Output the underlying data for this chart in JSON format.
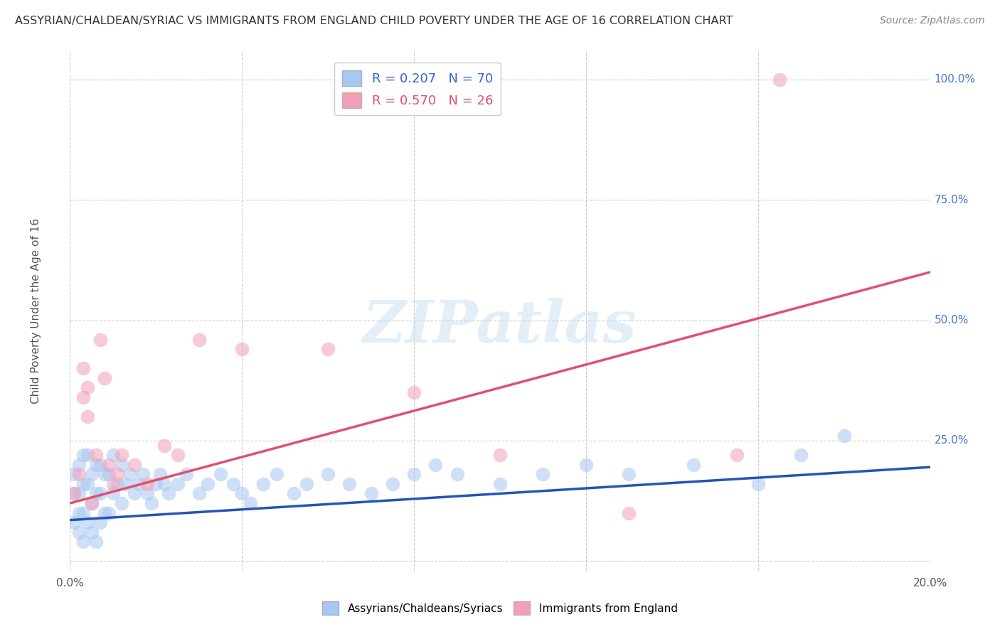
{
  "title": "ASSYRIAN/CHALDEAN/SYRIAC VS IMMIGRANTS FROM ENGLAND CHILD POVERTY UNDER THE AGE OF 16 CORRELATION CHART",
  "source": "Source: ZipAtlas.com",
  "ylabel": "Child Poverty Under the Age of 16",
  "xlim": [
    0.0,
    0.2
  ],
  "ylim": [
    -0.02,
    1.06
  ],
  "xticks": [
    0.0,
    0.04,
    0.08,
    0.12,
    0.16,
    0.2
  ],
  "xticklabels": [
    "0.0%",
    "",
    "",
    "",
    "",
    "20.0%"
  ],
  "yticks": [
    0.0,
    0.25,
    0.5,
    0.75,
    1.0
  ],
  "yticklabels": [
    "",
    "25.0%",
    "50.0%",
    "75.0%",
    "100.0%"
  ],
  "background_color": "#ffffff",
  "grid_color": "#cccccc",
  "watermark": "ZIPatlas",
  "blue_series": {
    "label": "Assyrians/Chaldeans/Syriacs",
    "R": 0.207,
    "N": 70,
    "color": "#a8c8f0",
    "line_color": "#2255bb",
    "scatter_x": [
      0.001,
      0.001,
      0.001,
      0.002,
      0.002,
      0.002,
      0.002,
      0.003,
      0.003,
      0.003,
      0.003,
      0.004,
      0.004,
      0.004,
      0.005,
      0.005,
      0.005,
      0.006,
      0.006,
      0.006,
      0.007,
      0.007,
      0.007,
      0.008,
      0.008,
      0.009,
      0.009,
      0.01,
      0.01,
      0.011,
      0.012,
      0.012,
      0.013,
      0.014,
      0.015,
      0.016,
      0.017,
      0.018,
      0.019,
      0.02,
      0.021,
      0.022,
      0.023,
      0.025,
      0.027,
      0.03,
      0.032,
      0.035,
      0.038,
      0.04,
      0.042,
      0.045,
      0.048,
      0.052,
      0.055,
      0.06,
      0.065,
      0.07,
      0.075,
      0.08,
      0.085,
      0.09,
      0.1,
      0.11,
      0.12,
      0.13,
      0.145,
      0.16,
      0.17,
      0.18
    ],
    "scatter_y": [
      0.08,
      0.14,
      0.18,
      0.06,
      0.1,
      0.14,
      0.2,
      0.04,
      0.1,
      0.16,
      0.22,
      0.08,
      0.16,
      0.22,
      0.06,
      0.12,
      0.18,
      0.04,
      0.14,
      0.2,
      0.08,
      0.14,
      0.2,
      0.1,
      0.18,
      0.1,
      0.18,
      0.14,
      0.22,
      0.16,
      0.12,
      0.2,
      0.16,
      0.18,
      0.14,
      0.16,
      0.18,
      0.14,
      0.12,
      0.16,
      0.18,
      0.16,
      0.14,
      0.16,
      0.18,
      0.14,
      0.16,
      0.18,
      0.16,
      0.14,
      0.12,
      0.16,
      0.18,
      0.14,
      0.16,
      0.18,
      0.16,
      0.14,
      0.16,
      0.18,
      0.2,
      0.18,
      0.16,
      0.18,
      0.2,
      0.18,
      0.2,
      0.16,
      0.22,
      0.26
    ],
    "trend_x": [
      0.0,
      0.2
    ],
    "trend_y": [
      0.085,
      0.195
    ]
  },
  "pink_series": {
    "label": "Immigrants from England",
    "R": 0.57,
    "N": 26,
    "color": "#f0a0b8",
    "line_color": "#e05070",
    "scatter_x": [
      0.001,
      0.002,
      0.003,
      0.003,
      0.004,
      0.004,
      0.005,
      0.006,
      0.007,
      0.008,
      0.009,
      0.01,
      0.011,
      0.012,
      0.015,
      0.018,
      0.022,
      0.025,
      0.03,
      0.04,
      0.06,
      0.08,
      0.1,
      0.13,
      0.155,
      0.165
    ],
    "scatter_y": [
      0.14,
      0.18,
      0.34,
      0.4,
      0.3,
      0.36,
      0.12,
      0.22,
      0.46,
      0.38,
      0.2,
      0.16,
      0.18,
      0.22,
      0.2,
      0.16,
      0.24,
      0.22,
      0.46,
      0.44,
      0.44,
      0.35,
      0.22,
      0.1,
      0.22,
      1.0
    ],
    "trend_x": [
      0.0,
      0.2
    ],
    "trend_y": [
      0.12,
      0.6
    ]
  },
  "legend": {
    "blue_label": "R = 0.207   N = 70",
    "pink_label": "R = 0.570   N = 26"
  }
}
